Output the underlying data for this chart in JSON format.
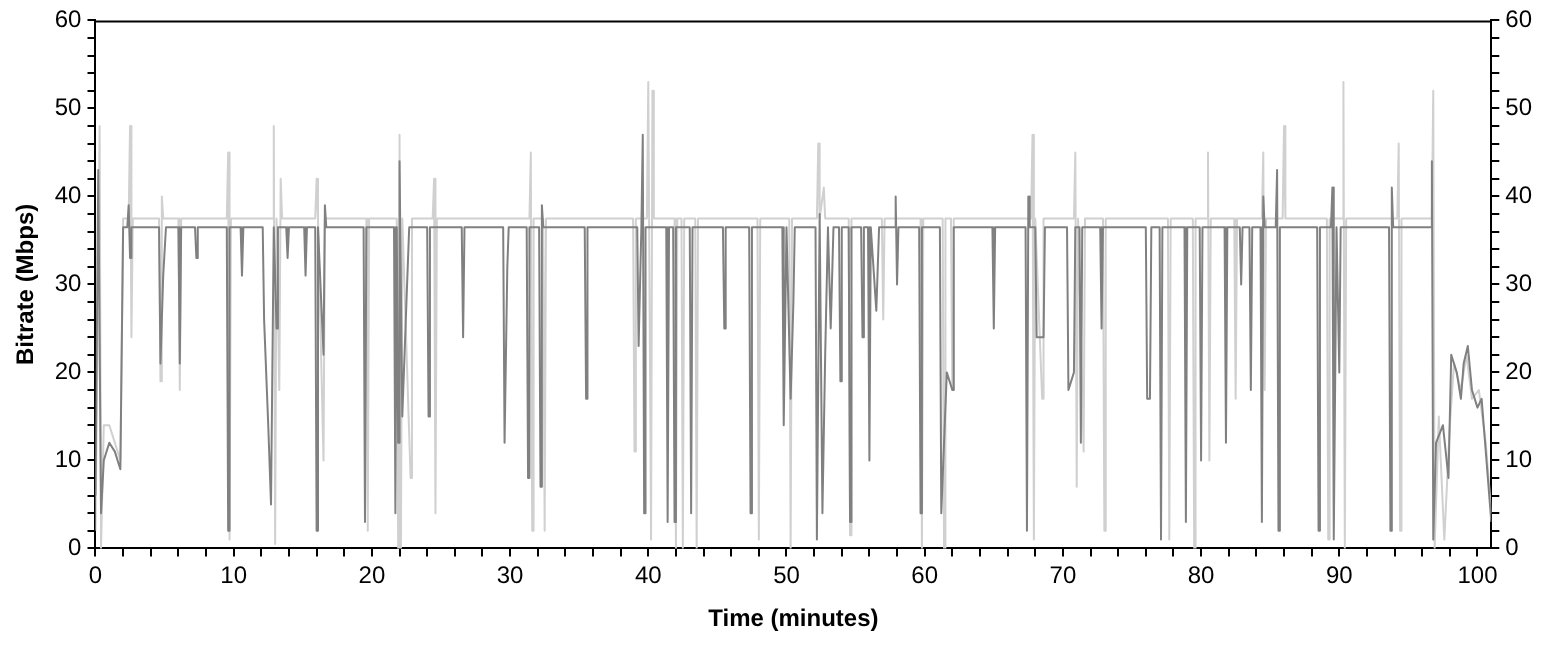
{
  "chart_data": {
    "type": "line",
    "xlabel": "Time (minutes)",
    "ylabel": "Bitrate (Mbps)",
    "marker": "none",
    "line_style": "solid",
    "xlim": [
      0,
      101
    ],
    "ylim": [
      0,
      60
    ],
    "y2lim": [
      0,
      60
    ],
    "xticks": [
      0,
      {
        "value": 2,
        "label": null
      },
      {
        "value": 4,
        "label": null
      },
      {
        "value": 6,
        "label": null
      },
      {
        "value": 8,
        "label": null
      },
      10,
      {
        "value": 12,
        "label": null
      },
      {
        "value": 14,
        "label": null
      },
      {
        "value": 16,
        "label": null
      },
      {
        "value": 18,
        "label": null
      },
      20,
      {
        "value": 22,
        "label": null
      },
      {
        "value": 24,
        "label": null
      },
      {
        "value": 26,
        "label": null
      },
      {
        "value": 28,
        "label": null
      },
      30,
      {
        "value": 32,
        "label": null
      },
      {
        "value": 34,
        "label": null
      },
      {
        "value": 36,
        "label": null
      },
      {
        "value": 38,
        "label": null
      },
      40,
      {
        "value": 42,
        "label": null
      },
      {
        "value": 44,
        "label": null
      },
      {
        "value": 46,
        "label": null
      },
      {
        "value": 48,
        "label": null
      },
      50,
      {
        "value": 52,
        "label": null
      },
      {
        "value": 54,
        "label": null
      },
      {
        "value": 56,
        "label": null
      },
      {
        "value": 58,
        "label": null
      },
      60,
      {
        "value": 62,
        "label": null
      },
      {
        "value": 64,
        "label": null
      },
      {
        "value": 66,
        "label": null
      },
      {
        "value": 68,
        "label": null
      },
      70,
      {
        "value": 72,
        "label": null
      },
      {
        "value": 74,
        "label": null
      },
      {
        "value": 76,
        "label": null
      },
      {
        "value": 78,
        "label": null
      },
      80,
      {
        "value": 82,
        "label": null
      },
      {
        "value": 84,
        "label": null
      },
      {
        "value": 86,
        "label": null
      },
      {
        "value": 88,
        "label": null
      },
      90,
      {
        "value": 92,
        "label": null
      },
      {
        "value": 94,
        "label": null
      },
      {
        "value": 96,
        "label": null
      },
      {
        "value": 98,
        "label": null
      },
      100
    ],
    "yticks": [
      0,
      {
        "value": 2,
        "label": null
      },
      {
        "value": 4,
        "label": null
      },
      {
        "value": 6,
        "label": null
      },
      {
        "value": 8,
        "label": null
      },
      10,
      {
        "value": 12,
        "label": null
      },
      {
        "value": 14,
        "label": null
      },
      {
        "value": 16,
        "label": null
      },
      {
        "value": 18,
        "label": null
      },
      20,
      {
        "value": 22,
        "label": null
      },
      {
        "value": 24,
        "label": null
      },
      {
        "value": 26,
        "label": null
      },
      {
        "value": 28,
        "label": null
      },
      30,
      {
        "value": 32,
        "label": null
      },
      {
        "value": 34,
        "label": null
      },
      {
        "value": 36,
        "label": null
      },
      {
        "value": 38,
        "label": null
      },
      40,
      {
        "value": 42,
        "label": null
      },
      {
        "value": 44,
        "label": null
      },
      {
        "value": 46,
        "label": null
      },
      {
        "value": 48,
        "label": null
      },
      50,
      {
        "value": 52,
        "label": null
      },
      {
        "value": 54,
        "label": null
      },
      {
        "value": 56,
        "label": null
      },
      {
        "value": 58,
        "label": null
      },
      60
    ],
    "y2ticks": [
      0,
      {
        "value": 2,
        "label": null
      },
      {
        "value": 4,
        "label": null
      },
      {
        "value": 6,
        "label": null
      },
      {
        "value": 8,
        "label": null
      },
      10,
      {
        "value": 12,
        "label": null
      },
      {
        "value": 14,
        "label": null
      },
      {
        "value": 16,
        "label": null
      },
      {
        "value": 18,
        "label": null
      },
      20,
      {
        "value": 22,
        "label": null
      },
      {
        "value": 24,
        "label": null
      },
      {
        "value": 26,
        "label": null
      },
      {
        "value": 28,
        "label": null
      },
      30,
      {
        "value": 32,
        "label": null
      },
      {
        "value": 34,
        "label": null
      },
      {
        "value": 36,
        "label": null
      },
      {
        "value": 38,
        "label": null
      },
      40,
      {
        "value": 42,
        "label": null
      },
      {
        "value": 44,
        "label": null
      },
      {
        "value": 46,
        "label": null
      },
      {
        "value": 48,
        "label": null
      },
      50,
      {
        "value": 52,
        "label": null
      },
      {
        "value": 54,
        "label": null
      },
      {
        "value": 56,
        "label": null
      },
      {
        "value": 58,
        "label": null
      },
      60
    ],
    "series": [
      {
        "color": "#d0d0d0",
        "x": [
          0,
          0.3,
          0.4,
          0.6,
          1.0,
          1.4,
          1.8,
          2.0,
          2.4,
          2.5,
          2.6,
          2.7,
          4.6,
          4.7,
          4.8,
          4.9,
          6.0,
          6.1,
          6.2,
          9.5,
          9.6,
          9.7,
          9.8,
          12.8,
          12.9,
          13.0,
          13.1,
          13.3,
          13.4,
          13.5,
          15.9,
          16.0,
          16.1,
          16.5,
          16.6,
          19.6,
          19.7,
          19.8,
          21.8,
          21.9,
          22.0,
          22.1,
          22.2,
          22.8,
          22.9,
          24.4,
          24.5,
          24.6,
          24.7,
          31.4,
          31.5,
          31.6,
          31.7,
          32.4,
          32.5,
          32.6,
          38.9,
          39.0,
          39.1,
          39.9,
          40.0,
          40.2,
          40.3,
          40.4,
          41.9,
          42.0,
          42.1,
          42.4,
          42.5,
          42.6,
          43.4,
          43.5,
          43.6,
          47.9,
          48.0,
          48.1,
          50.2,
          50.3,
          50.4,
          52.2,
          52.3,
          52.4,
          52.7,
          52.8,
          54.5,
          54.6,
          54.7,
          56.9,
          57.0,
          57.1,
          59.7,
          59.8,
          59.9,
          61.3,
          61.4,
          61.5,
          61.9,
          62.0,
          62.1,
          67.7,
          67.8,
          67.9,
          68.0,
          68.5,
          68.6,
          70.8,
          70.9,
          71.0,
          71.1,
          71.5,
          71.6,
          72.9,
          73.0,
          73.1,
          77.6,
          77.7,
          77.8,
          79.4,
          79.5,
          79.6,
          80.4,
          80.5,
          80.6,
          80.7,
          82.4,
          82.5,
          82.6,
          84.4,
          84.5,
          84.6,
          84.7,
          85.9,
          86.0,
          86.1,
          89.1,
          89.2,
          89.3,
          90.2,
          90.3,
          90.4,
          90.5,
          94.2,
          94.3,
          94.4,
          94.5,
          96.7,
          96.8,
          96.9,
          97.2,
          97.6,
          98.0,
          98.3,
          98.8,
          99.2,
          99.6,
          100.1,
          100.6,
          101
        ],
        "values": [
          2,
          48,
          0,
          14,
          14,
          12,
          10,
          37.5,
          37.5,
          48,
          24,
          37.5,
          37.5,
          19,
          40,
          37.5,
          37.5,
          18,
          37.5,
          37.5,
          45,
          1,
          37.5,
          37.5,
          48,
          0.5,
          37.5,
          18,
          42,
          37.5,
          37.5,
          42,
          37.5,
          10,
          37.5,
          37.5,
          2,
          37.5,
          37.5,
          0,
          47,
          0,
          37.5,
          8,
          37.5,
          37.5,
          42,
          4,
          37.5,
          37.5,
          45,
          2,
          37.5,
          37.5,
          2,
          37.5,
          37.5,
          11,
          37.5,
          37.5,
          53,
          1,
          52,
          37.5,
          37.5,
          0,
          37.5,
          37.5,
          0,
          37.5,
          37.5,
          0,
          37.5,
          37.5,
          1,
          37.5,
          37.5,
          0,
          37.5,
          37.5,
          46,
          37.5,
          41,
          37.5,
          37.5,
          1.5,
          37.5,
          37.5,
          26,
          37.5,
          37.5,
          0,
          37.5,
          37.5,
          0,
          37.5,
          37.5,
          18,
          37.5,
          37.5,
          47,
          1,
          37.5,
          17,
          37.5,
          37.5,
          45,
          7,
          37.5,
          11,
          37.5,
          37.5,
          2,
          37.5,
          37.5,
          1,
          37.5,
          37.5,
          0,
          37.5,
          37.5,
          45,
          10,
          37.5,
          37.5,
          17,
          37.5,
          37.5,
          45,
          18,
          37.5,
          37.5,
          48,
          37.5,
          37.5,
          1,
          37.5,
          37.5,
          53,
          0,
          37.5,
          37.5,
          46,
          2,
          37.5,
          37.5,
          52,
          0,
          15,
          1,
          14,
          21,
          18,
          22,
          17,
          18,
          12,
          4
        ]
      },
      {
        "color": "#808080",
        "x": [
          0,
          0.2,
          0.4,
          0.6,
          1,
          1.4,
          1.8,
          2,
          2.3,
          2.4,
          2.5,
          2.6,
          4.6,
          4.7,
          4.9,
          5.1,
          6.0,
          6.1,
          6.2,
          7.2,
          7.3,
          7.4,
          9.5,
          9.6,
          9.7,
          10.5,
          10.6,
          10.7,
          12.1,
          12.2,
          12.5,
          12.7,
          12.9,
          13.1,
          13.2,
          13.8,
          13.9,
          14.0,
          15.1,
          15.2,
          15.3,
          15.9,
          16.0,
          16.1,
          16.5,
          16.6,
          16.7,
          19.4,
          19.5,
          19.6,
          21.6,
          21.7,
          21.8,
          21.9,
          22.0,
          22.2,
          22.5,
          22.7,
          24.0,
          24.1,
          24.2,
          26.5,
          26.6,
          26.7,
          29.5,
          29.6,
          29.8,
          29.9,
          31.2,
          31.3,
          31.4,
          32.1,
          32.2,
          32.3,
          32.4,
          35.4,
          35.5,
          35.6,
          39.2,
          39.3,
          39.5,
          39.6,
          39.7,
          39.8,
          41.3,
          41.4,
          41.5,
          41.8,
          41.9,
          42.0,
          43.0,
          43.1,
          43.2,
          45.4,
          45.5,
          45.6,
          47.3,
          47.4,
          47.5,
          49.7,
          49.8,
          50.0,
          50.3,
          50.5,
          50.6,
          52.1,
          52.2,
          52.4,
          52.6,
          52.8,
          53.0,
          53.2,
          53.4,
          53.8,
          53.9,
          54.0,
          54.5,
          54.6,
          54.7,
          55.4,
          55.5,
          55.6,
          55.9,
          56.0,
          56.1,
          56.5,
          56.7,
          57.8,
          57.9,
          58.0,
          58.1,
          59.6,
          59.7,
          59.8,
          61.1,
          61.2,
          61.6,
          62.0,
          62.1,
          64.9,
          65.0,
          65.1,
          67.3,
          67.4,
          67.5,
          67.6,
          68.0,
          68.1,
          68.6,
          68.7,
          70.3,
          70.4,
          70.8,
          70.9,
          71.2,
          71.3,
          71.4,
          72.7,
          72.8,
          72.9,
          76.0,
          76.1,
          76.3,
          76.4,
          77.0,
          77.1,
          77.2,
          78.8,
          78.9,
          79.0,
          79.9,
          80.0,
          80.1,
          81.7,
          81.8,
          81.9,
          82.8,
          82.9,
          83.0,
          83.5,
          83.6,
          83.7,
          84.3,
          84.4,
          84.5,
          84.6,
          85.4,
          85.5,
          85.6,
          85.7,
          88.4,
          88.5,
          88.6,
          89.4,
          89.5,
          89.6,
          89.8,
          90.0,
          90.1,
          93.6,
          93.7,
          93.8,
          93.9,
          96.6,
          96.7,
          96.8,
          97.0,
          97.5,
          97.9,
          98.1,
          98.5,
          98.8,
          99.0,
          99.3,
          99.6,
          100.0,
          100.3,
          100.5,
          100.9,
          101
        ],
        "values": [
          6,
          43,
          4,
          10,
          12,
          11,
          9,
          36.5,
          36.5,
          39,
          33,
          36.5,
          36.5,
          21,
          31,
          36.5,
          36.5,
          21,
          36.5,
          36.5,
          33,
          36.5,
          36.5,
          2,
          36.5,
          36.5,
          31,
          36.5,
          36.5,
          26,
          14,
          5,
          36.5,
          25,
          36.5,
          36.5,
          33,
          36.5,
          36.5,
          31,
          36.5,
          36.5,
          2,
          36.5,
          22,
          39,
          36.5,
          36.5,
          3,
          36.5,
          36.5,
          4,
          36.5,
          12,
          44,
          15,
          28,
          36.5,
          36.5,
          15,
          36.5,
          36.5,
          24,
          36.5,
          36.5,
          12,
          32,
          36.5,
          36.5,
          8,
          36.5,
          36.5,
          7,
          39,
          36.5,
          36.5,
          17,
          36.5,
          36.5,
          23,
          36.5,
          47,
          4,
          36.5,
          36.5,
          3,
          36.5,
          36.5,
          3,
          36.5,
          36.5,
          4,
          36.5,
          36.5,
          25,
          36.5,
          36.5,
          4,
          36.5,
          36.5,
          14,
          36.5,
          17,
          28,
          36.5,
          36.5,
          1,
          38,
          4,
          22,
          36.5,
          25,
          36.5,
          36.5,
          19,
          36.5,
          36.5,
          3,
          36.5,
          36.5,
          24,
          36.5,
          36.5,
          10,
          36.5,
          27,
          36.5,
          36.5,
          40,
          30,
          36.5,
          36.5,
          4,
          36.5,
          36.5,
          4,
          20,
          18,
          36.5,
          36.5,
          25,
          36.5,
          36.5,
          2,
          40,
          36.5,
          36.5,
          24,
          24,
          36.5,
          36.5,
          18,
          20,
          36.5,
          36.5,
          12,
          36.5,
          36.5,
          25,
          36.5,
          36.5,
          17,
          17,
          36.5,
          36.5,
          1,
          36.5,
          36.5,
          3,
          36.5,
          36.5,
          10,
          36.5,
          36.5,
          12,
          36.5,
          36.5,
          30,
          36.5,
          36.5,
          18,
          36.5,
          36.5,
          3,
          40,
          36.5,
          36.5,
          43,
          2,
          36.5,
          36.5,
          2,
          36.5,
          36.5,
          41,
          1,
          36.5,
          20,
          36.5,
          36.5,
          2,
          41,
          36.5,
          36.5,
          44,
          1,
          12,
          14,
          8,
          22,
          20,
          17,
          21,
          23,
          18,
          16,
          17,
          13,
          5,
          3
        ]
      }
    ]
  }
}
